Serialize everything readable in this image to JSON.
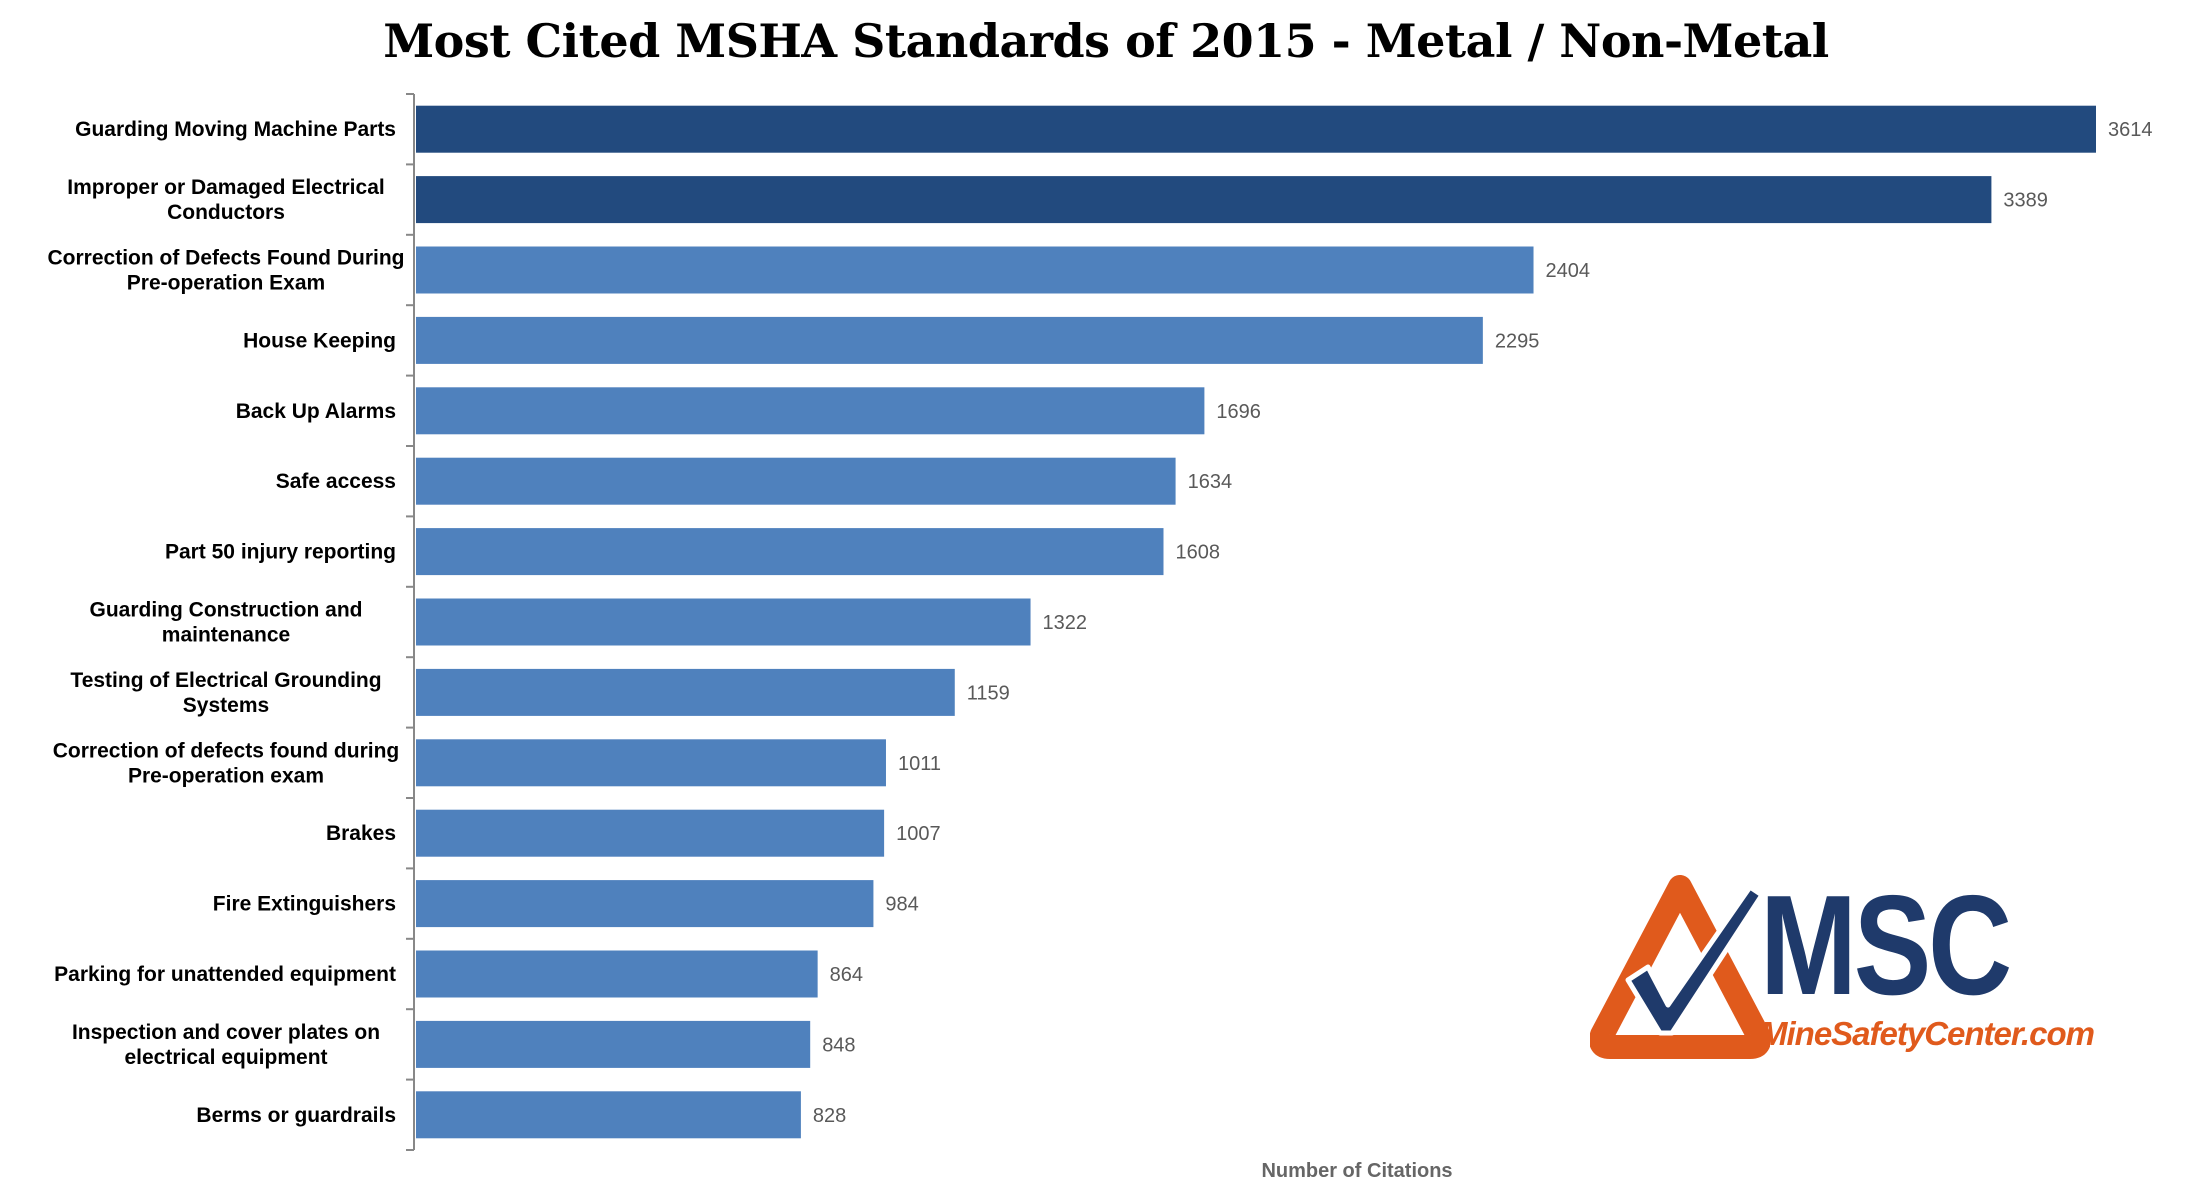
{
  "chart_data": {
    "type": "bar",
    "orientation": "horizontal",
    "title": "Most Cited MSHA Standards of 2015 - Metal / Non-Metal",
    "xlabel": "Number of Citations",
    "ylabel": "",
    "xlim": [
      0,
      3800
    ],
    "grid": false,
    "categories": [
      [
        "Guarding Moving Machine Parts"
      ],
      [
        "Improper or Damaged Electrical",
        "Conductors"
      ],
      [
        "Correction of Defects Found During",
        "Pre-operation Exam"
      ],
      [
        "House Keeping"
      ],
      [
        "Back Up Alarms"
      ],
      [
        "Safe access"
      ],
      [
        "Part 50 injury reporting"
      ],
      [
        "Guarding Construction and",
        "maintenance"
      ],
      [
        "Testing of Electrical Grounding",
        "Systems"
      ],
      [
        "Correction of defects found during",
        "Pre-operation exam"
      ],
      [
        "Brakes"
      ],
      [
        "Fire Extinguishers"
      ],
      [
        "Parking for unattended equipment"
      ],
      [
        "Inspection and cover plates on",
        "electrical equipment"
      ],
      [
        "Berms or guardrails"
      ]
    ],
    "values": [
      3614,
      3389,
      2404,
      2295,
      1696,
      1634,
      1608,
      1322,
      1159,
      1011,
      1007,
      984,
      864,
      848,
      828
    ],
    "colors": {
      "highlight": "#224a7e",
      "bar": "#4f81bd",
      "highlight_count": 2
    }
  },
  "logo": {
    "text": "MSC",
    "url": "MineSafetyCenter.com",
    "orange": "#e05a1c",
    "navy": "#1f3a6b"
  }
}
